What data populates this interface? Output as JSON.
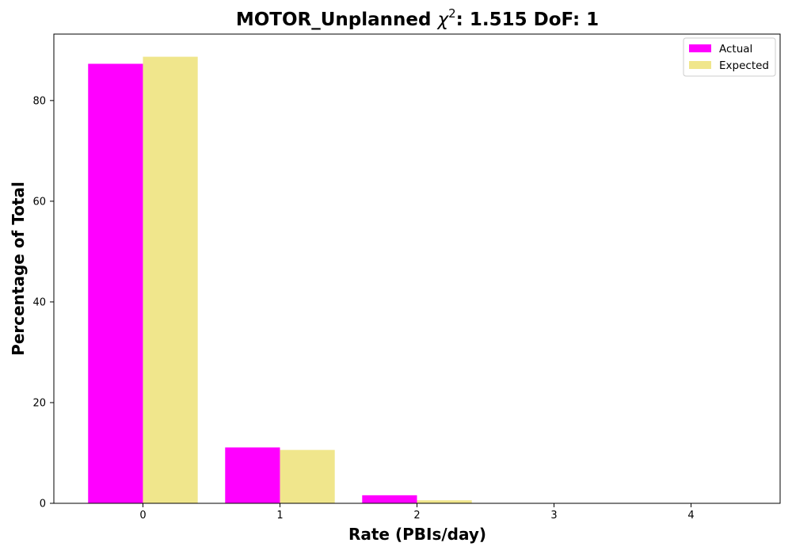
{
  "chart_data": {
    "type": "bar",
    "title_prefix": "MOTOR_Unplanned ",
    "title_chi": "χ",
    "title_chi_exp": "2",
    "title_suffix": ": 1.515 DoF: 1",
    "xlabel": "Rate (PBIs/day)",
    "ylabel": "Percentage of Total",
    "categories": [
      "0",
      "1",
      "2",
      "3",
      "4"
    ],
    "x": [
      0,
      1,
      2,
      3,
      4
    ],
    "xlim": [
      -0.65,
      4.65
    ],
    "ylim": [
      0,
      93.2
    ],
    "yticks": [
      0,
      20,
      40,
      60,
      80
    ],
    "grid": false,
    "legend_position": "top-right",
    "bar_group_width": 0.8,
    "series": [
      {
        "name": "Actual",
        "color": "#ff00ff",
        "values": [
          87.3,
          11.1,
          1.6,
          0,
          0
        ]
      },
      {
        "name": "Expected",
        "color": "#f0e68c",
        "values": [
          88.7,
          10.6,
          0.6,
          0.02,
          0
        ]
      }
    ]
  }
}
